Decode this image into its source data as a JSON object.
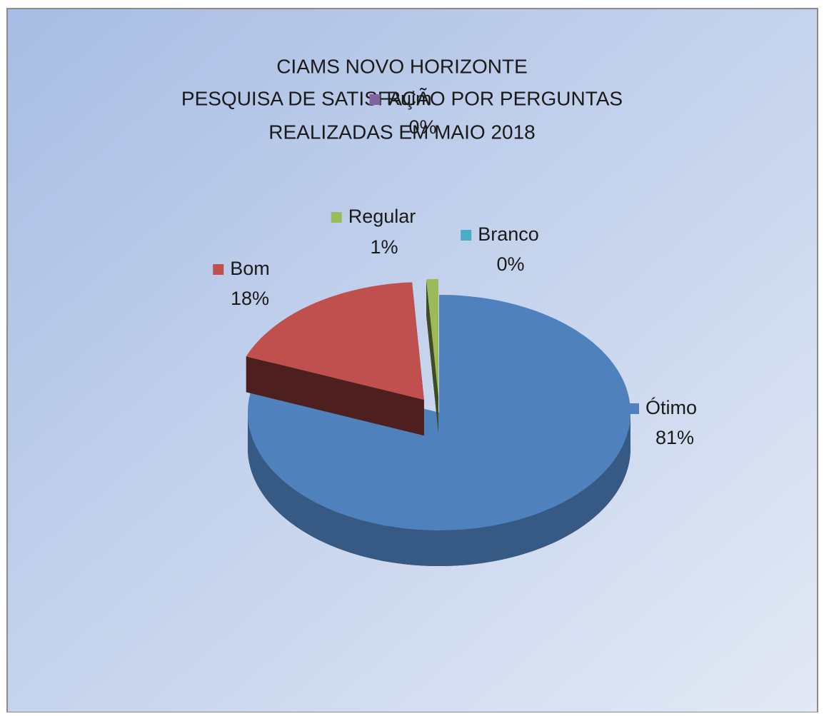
{
  "chart_data": {
    "type": "pie3d",
    "title_lines": [
      "CIAMS NOVO HORIZONTE",
      "PESQUISA DE SATISFAÇÃO POR PERGUNTAS",
      "REALIZADAS EM MAIO 2018"
    ],
    "categories": [
      "Ótimo",
      "Bom",
      "Regular",
      "Branco",
      "Ruim"
    ],
    "values": [
      81,
      18,
      1,
      0,
      0
    ],
    "value_labels": [
      "81%",
      "18%",
      "1%",
      "0%",
      "0%"
    ],
    "colors": [
      "#4f81bd",
      "#c0504d",
      "#9bbb59",
      "#4bacc6",
      "#8064a2"
    ]
  }
}
